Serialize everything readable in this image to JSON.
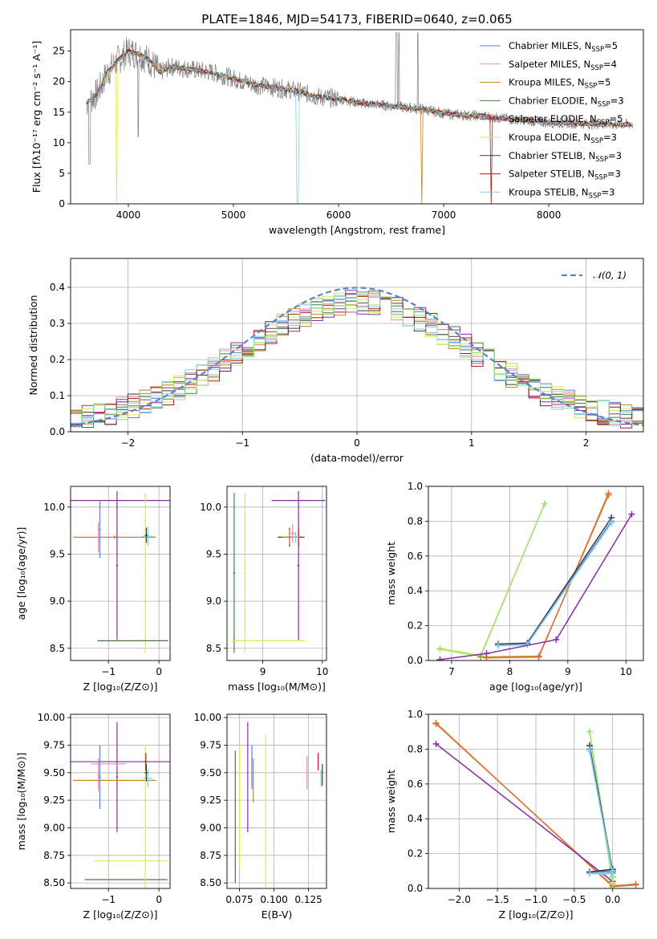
{
  "figure": {
    "title": "PLATE=1846, MJD=54173, FIBERID=0640, z=0.065"
  },
  "chart_data": [
    {
      "id": "spectrum",
      "type": "line",
      "xlabel": "wavelength [Angstrom, rest frame]",
      "ylabel": "Flux [fλ10⁻¹⁷ erg cm⁻² s⁻¹ A⁻¹]",
      "xlim": [
        3450,
        8900
      ],
      "ylim": [
        0,
        28.5
      ],
      "xticks": [
        4000,
        5000,
        6000,
        7000,
        8000
      ],
      "yticks": [
        0,
        5,
        10,
        15,
        20,
        25
      ],
      "grid": false,
      "legend_position": "top-right",
      "legend": [
        {
          "name": "Chabrier MILES, N_SSP=5",
          "base": "Chabrier MILES, N",
          "sub": "SSP",
          "tail": "=5",
          "color": "#5b80d8"
        },
        {
          "name": "Salpeter MILES, N_SSP=4",
          "base": "Salpeter MILES, N",
          "sub": "SSP",
          "tail": "=4",
          "color": "#e889b0"
        },
        {
          "name": "Kroupa MILES, N_SSP=5",
          "base": "Kroupa MILES, N",
          "sub": "SSP",
          "tail": "=5",
          "color": "#c8861b"
        },
        {
          "name": "Chabrier ELODIE, N_SSP=3",
          "base": "Chabrier ELODIE, N",
          "sub": "SSP",
          "tail": "=3",
          "color": "#3f7f40"
        },
        {
          "name": "Salpeter ELODIE, N_SSP=5",
          "base": "Salpeter ELODIE, N",
          "sub": "SSP",
          "tail": "=5",
          "color": "#8a2aa8"
        },
        {
          "name": "Kroupa ELODIE, N_SSP=3",
          "base": "Kroupa ELODIE, N",
          "sub": "SSP",
          "tail": "=3",
          "color": "#e3e84a"
        },
        {
          "name": "Chabrier STELIB, N_SSP=3",
          "base": "Chabrier STELIB, N",
          "sub": "SSP",
          "tail": "=3",
          "color": "#3a3a3a"
        },
        {
          "name": "Salpeter STELIB, N_SSP=3",
          "base": "Salpeter STELIB, N",
          "sub": "SSP",
          "tail": "=3",
          "color": "#b01818"
        },
        {
          "name": "Kroupa STELIB, N_SSP=3",
          "base": "Kroupa STELIB, N",
          "sub": "SSP",
          "tail": "=3",
          "color": "#7fd0e0"
        }
      ],
      "data_color": "#808080",
      "model_continuum": {
        "x": [
          3600,
          3700,
          3800,
          3900,
          4000,
          4100,
          4200,
          4300,
          4400,
          4600,
          4800,
          5000,
          5200,
          5400,
          5600,
          5800,
          6000,
          6200,
          6400,
          6600,
          6800,
          7000,
          7200,
          7400,
          7600,
          7800,
          8000,
          8200,
          8400,
          8600,
          8800
        ],
        "y": [
          16.5,
          18.0,
          21.5,
          23.5,
          25.0,
          24.5,
          23.5,
          21.5,
          22.5,
          22.0,
          21.5,
          20.5,
          19.5,
          19.0,
          18.5,
          17.5,
          17.2,
          16.5,
          16.2,
          15.8,
          15.5,
          14.8,
          14.5,
          14.3,
          13.9,
          13.6,
          13.3,
          13.2,
          13.1,
          13.0,
          13.0
        ]
      },
      "notes_absorption": [
        3890,
        5610,
        6790,
        7440
      ]
    },
    {
      "id": "residuals",
      "type": "line",
      "xlabel": "(data-model)/error",
      "ylabel": "Normed distribution",
      "xlim": [
        -2.5,
        2.5
      ],
      "ylim": [
        0,
        0.48
      ],
      "xticks": [
        -2,
        -1,
        0,
        1,
        2
      ],
      "yticks": [
        0.0,
        0.1,
        0.2,
        0.3,
        0.4
      ],
      "grid": true,
      "legend_position": "top-right",
      "legend": [
        {
          "name": "𝒩(0, 1)",
          "color": "#5b80d8",
          "style": "dashed"
        }
      ],
      "reference_curve": {
        "type": "gaussian",
        "mu": 0,
        "sigma": 1
      }
    },
    {
      "id": "age_vs_Z",
      "type": "scatter",
      "xlabel": "Z [log₁₀(Z/Z⊙)]",
      "ylabel": "age  [log₁₀(age/yr)]",
      "xlim": [
        -1.75,
        0.22
      ],
      "ylim": [
        8.37,
        10.22
      ],
      "xticks": [
        -1,
        0
      ],
      "yticks": [
        8.5,
        9.0,
        9.5,
        10.0
      ],
      "grid": true,
      "errorbars": [
        {
          "color": "#c8861b",
          "x": -0.88,
          "xerr": 0.82,
          "y": 9.68,
          "yerr": 0.02
        },
        {
          "color": "#e889b0",
          "x": -1.2,
          "xerr": 0.02,
          "y": 9.68,
          "yerr": 0.16
        },
        {
          "color": "#5b80d8",
          "x": -1.17,
          "xerr": 0.02,
          "y": 9.76,
          "yerr": 0.3
        },
        {
          "color": "#8a2aa8",
          "x": -0.83,
          "xerr": 1.2,
          "y": 10.07,
          "yerr": 0.0
        },
        {
          "color": "#8a2aa8",
          "x": -0.83,
          "xerr": 0.02,
          "y": 9.38,
          "yerr": 0.79
        },
        {
          "color": "#e3e84a",
          "x": -0.27,
          "xerr": 0.02,
          "y": 9.3,
          "yerr": 0.85
        },
        {
          "color": "#e3e84a",
          "x": -0.37,
          "xerr": 0.55,
          "y": 8.58,
          "yerr": 0.0
        },
        {
          "color": "#3f7f40",
          "x": -0.52,
          "xerr": 0.7,
          "y": 8.58,
          "yerr": 0.0
        },
        {
          "color": "#7fd0e0",
          "x": -0.22,
          "xerr": 0.1,
          "y": 9.69,
          "yerr": 0.1
        },
        {
          "color": "#3a3a3a",
          "x": -0.25,
          "xerr": 0.03,
          "y": 9.7,
          "yerr": 0.08
        }
      ]
    },
    {
      "id": "age_vs_mass",
      "type": "scatter",
      "xlabel": "mass [log₁₀(M/M⊙)]",
      "ylabel": "",
      "xlim": [
        8.4,
        10.07
      ],
      "ylim": [
        8.37,
        10.22
      ],
      "xticks": [
        9,
        10
      ],
      "yticks": [
        8.5,
        9.0,
        9.5,
        10.0
      ],
      "grid": true,
      "errorbars": [
        {
          "color": "#8a2aa8",
          "x": 9.6,
          "xerr": 0.45,
          "y": 10.07,
          "yerr": 0.0
        },
        {
          "color": "#8a2aa8",
          "x": 9.6,
          "xerr": 0.02,
          "y": 9.38,
          "yerr": 0.79
        },
        {
          "color": "#3f7f40",
          "x": 8.52,
          "xerr": 0.02,
          "y": 9.3,
          "yerr": 0.85
        },
        {
          "color": "#e3e84a",
          "x": 8.7,
          "xerr": 0.02,
          "y": 9.3,
          "yerr": 0.85
        },
        {
          "color": "#e3e84a",
          "x": 9.1,
          "xerr": 0.62,
          "y": 8.58,
          "yerr": 0.0
        },
        {
          "color": "#3a3a3a",
          "x": 9.45,
          "xerr": 0.2,
          "y": 9.68,
          "yerr": 0.1
        },
        {
          "color": "#c8861b",
          "x": 9.45,
          "xerr": 0.12,
          "y": 9.68,
          "yerr": 0.08
        },
        {
          "color": "#b01818",
          "x": 9.6,
          "xerr": 0.1,
          "y": 9.68,
          "yerr": 0.1
        },
        {
          "color": "#7fd0e0",
          "x": 9.55,
          "xerr": 0.06,
          "y": 9.68,
          "yerr": 0.06
        },
        {
          "color": "#e889b0",
          "x": 9.5,
          "xerr": 0.05,
          "y": 9.72,
          "yerr": 0.1
        }
      ]
    },
    {
      "id": "mass_weight_vs_age",
      "type": "line",
      "xlabel": "age  [log₁₀(age/yr)]",
      "ylabel": "mass weight",
      "xlim": [
        6.6,
        10.3
      ],
      "ylim": [
        0.0,
        1.0
      ],
      "xticks": [
        7,
        8,
        9,
        10
      ],
      "yticks": [
        0.0,
        0.2,
        0.4,
        0.6,
        0.8,
        1.0
      ],
      "grid": true,
      "series": [
        {
          "color": "#e3e84a",
          "x": [
            6.8,
            7.5,
            8.6
          ],
          "y": [
            0.07,
            0.03,
            0.9
          ]
        },
        {
          "color": "#9be07a",
          "x": [
            6.8,
            7.5,
            8.6
          ],
          "y": [
            0.065,
            0.025,
            0.9
          ]
        },
        {
          "color": "#c8861b",
          "x": [
            7.5,
            8.5,
            9.7
          ],
          "y": [
            0.02,
            0.025,
            0.95
          ]
        },
        {
          "color": "#e0703a",
          "x": [
            7.6,
            8.5,
            9.7
          ],
          "y": [
            0.015,
            0.02,
            0.96
          ]
        },
        {
          "color": "#3a3a3a",
          "x": [
            7.8,
            8.3,
            9.75
          ],
          "y": [
            0.095,
            0.1,
            0.82
          ]
        },
        {
          "color": "#5b80d8",
          "x": [
            7.8,
            8.3,
            9.75
          ],
          "y": [
            0.09,
            0.095,
            0.8
          ]
        },
        {
          "color": "#7fd0e0",
          "x": [
            7.8,
            8.3,
            9.75
          ],
          "y": [
            0.085,
            0.09,
            0.79
          ]
        },
        {
          "color": "#8a2aa8",
          "x": [
            6.8,
            7.6,
            8.8,
            10.1
          ],
          "y": [
            0.005,
            0.04,
            0.12,
            0.84
          ]
        }
      ]
    },
    {
      "id": "mass_vs_Z",
      "type": "scatter",
      "xlabel": "Z [log₁₀(Z/Z⊙)]",
      "ylabel": "mass [log₁₀(M/M⊙)]",
      "xlim": [
        -1.75,
        0.22
      ],
      "ylim": [
        8.45,
        10.03
      ],
      "xticks": [
        -1,
        0
      ],
      "yticks": [
        8.5,
        8.75,
        9.0,
        9.25,
        9.5,
        9.75,
        10.0
      ],
      "grid": true,
      "errorbars": [
        {
          "color": "#8a2aa8",
          "x": -0.83,
          "xerr": 1.2,
          "y": 9.6,
          "yerr": 0.0
        },
        {
          "color": "#8a2aa8",
          "x": -0.83,
          "xerr": 0.02,
          "y": 9.46,
          "yerr": 0.5
        },
        {
          "color": "#c8861b",
          "x": -0.88,
          "xerr": 0.82,
          "y": 9.43,
          "yerr": 0.0
        },
        {
          "color": "#e889b0",
          "x": -1.2,
          "xerr": 0.02,
          "y": 9.48,
          "yerr": 0.15
        },
        {
          "color": "#5b80d8",
          "x": -1.17,
          "xerr": 0.02,
          "y": 9.46,
          "yerr": 0.29
        },
        {
          "color": "#e889b0",
          "x": -1.0,
          "xerr": 0.35,
          "y": 9.58,
          "yerr": 0.0
        },
        {
          "color": "#e3e84a",
          "x": -0.55,
          "xerr": 0.73,
          "y": 8.7,
          "yerr": 0.0
        },
        {
          "color": "#3f7f40",
          "x": -0.65,
          "xerr": 0.82,
          "y": 8.53,
          "yerr": 0.0
        },
        {
          "color": "#e3e84a",
          "x": -0.27,
          "xerr": 0.02,
          "y": 9.0,
          "yerr": 0.75
        },
        {
          "color": "#7fd0e0",
          "x": -0.22,
          "xerr": 0.08,
          "y": 9.45,
          "yerr": 0.08
        },
        {
          "color": "#b01818",
          "x": -0.26,
          "xerr": 0.02,
          "y": 9.6,
          "yerr": 0.08
        },
        {
          "color": "#3a3a3a",
          "x": -0.25,
          "xerr": 0.03,
          "y": 9.5,
          "yerr": 0.08
        }
      ]
    },
    {
      "id": "mass_vs_ebv",
      "type": "scatter",
      "xlabel": "E(B-V)",
      "ylabel": "",
      "xlim": [
        0.066,
        0.138
      ],
      "ylim": [
        8.45,
        10.03
      ],
      "xticks": [
        0.075,
        0.1,
        0.125
      ],
      "xticklabels": [
        "0.075",
        "0.100",
        "0.125"
      ],
      "yticks": [
        8.5,
        8.75,
        9.0,
        9.25,
        9.5,
        9.75,
        10.0
      ],
      "grid": true,
      "errorbars": [
        {
          "color": "#3f7f40",
          "x": 0.072,
          "xerr": 0.0,
          "y": 9.1,
          "yerr": 0.6
        },
        {
          "color": "#e3e84a",
          "x": 0.075,
          "xerr": 0.0,
          "y": 9.2,
          "yerr": 0.55
        },
        {
          "color": "#8a2aa8",
          "x": 0.081,
          "xerr": 0.0,
          "y": 9.46,
          "yerr": 0.5
        },
        {
          "color": "#5b80d8",
          "x": 0.084,
          "xerr": 0.0,
          "y": 9.55,
          "yerr": 0.2
        },
        {
          "color": "#c8861b",
          "x": 0.085,
          "xerr": 0.0,
          "y": 9.43,
          "yerr": 0.2
        },
        {
          "color": "#e3e84a",
          "x": 0.094,
          "xerr": 0.0,
          "y": 9.1,
          "yerr": 0.75
        },
        {
          "color": "#e889b0",
          "x": 0.124,
          "xerr": 0.0,
          "y": 9.5,
          "yerr": 0.15
        },
        {
          "color": "#b01818",
          "x": 0.132,
          "xerr": 0.0,
          "y": 9.6,
          "yerr": 0.08
        },
        {
          "color": "#7fd0e0",
          "x": 0.134,
          "xerr": 0.0,
          "y": 9.45,
          "yerr": 0.08
        },
        {
          "color": "#3a3a3a",
          "x": 0.135,
          "xerr": 0.0,
          "y": 9.48,
          "yerr": 0.1
        }
      ]
    },
    {
      "id": "mass_weight_vs_Z",
      "type": "line",
      "xlabel": "Z [log₁₀(Z/Z⊙)]",
      "ylabel": "mass weight",
      "xlim": [
        -2.4,
        0.4
      ],
      "ylim": [
        0.0,
        1.0
      ],
      "xticks": [
        -2.0,
        -1.5,
        -1.0,
        -0.5,
        0.0
      ],
      "xticklabels": [
        "−2.0",
        "−1.5",
        "−1.0",
        "−0.5",
        "0.0"
      ],
      "yticks": [
        0.0,
        0.2,
        0.4,
        0.6,
        0.8,
        1.0
      ],
      "grid": true,
      "series": [
        {
          "color": "#c8861b",
          "x": [
            -2.3,
            0.0,
            0.3
          ],
          "y": [
            0.95,
            0.01,
            0.02
          ]
        },
        {
          "color": "#e0703a",
          "x": [
            -2.3,
            0.0,
            0.3
          ],
          "y": [
            0.945,
            0.015,
            0.025
          ]
        },
        {
          "color": "#8a2aa8",
          "x": [
            -2.3,
            0.0
          ],
          "y": [
            0.83,
            0.04
          ]
        },
        {
          "color": "#e3e84a",
          "x": [
            0.0,
            -0.3,
            0.0
          ],
          "y": [
            0.07,
            0.9,
            0.03
          ]
        },
        {
          "color": "#9be07a",
          "x": [
            0.0,
            -0.3,
            0.0
          ],
          "y": [
            0.065,
            0.9,
            0.025
          ]
        },
        {
          "color": "#3a3a3a",
          "x": [
            -0.3,
            0.0,
            -0.3,
            0.0
          ],
          "y": [
            0.82,
            0.1,
            0.095,
            0.11
          ]
        },
        {
          "color": "#5b80d8",
          "x": [
            -0.3,
            0.0,
            -0.3,
            0.0
          ],
          "y": [
            0.8,
            0.09,
            0.09,
            0.1
          ]
        },
        {
          "color": "#7fd0e0",
          "x": [
            -0.3,
            0.0,
            -0.3,
            0.0
          ],
          "y": [
            0.79,
            0.085,
            0.085,
            0.095
          ]
        }
      ]
    }
  ]
}
